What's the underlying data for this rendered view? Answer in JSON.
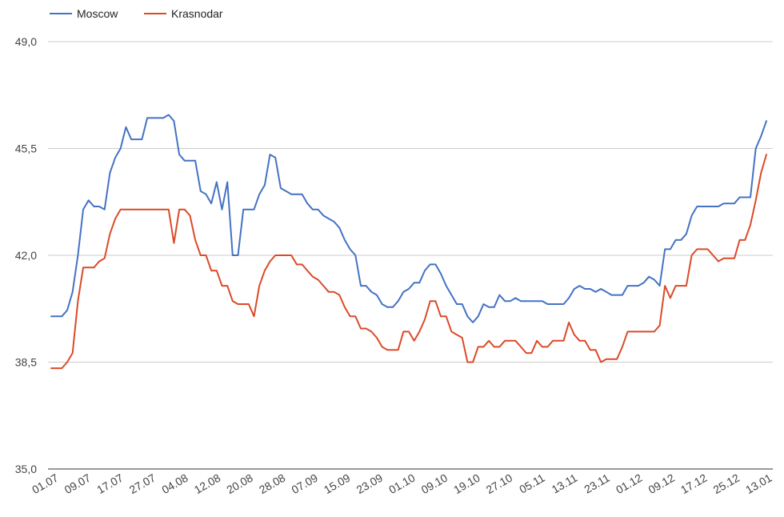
{
  "chart_data": {
    "type": "line",
    "title": "",
    "xlabel": "",
    "ylabel": "",
    "ylim": [
      35.0,
      49.0
    ],
    "yticks": [
      "35,0",
      "38,5",
      "42,0",
      "45,5",
      "49,0"
    ],
    "ytick_values": [
      35.0,
      38.5,
      42.0,
      45.5,
      49.0
    ],
    "xtick_labels": [
      "01.07",
      "09.07",
      "17.07",
      "27.07",
      "04.08",
      "12.08",
      "20.08",
      "28.08",
      "07.09",
      "15.09",
      "23.09",
      "01.10",
      "09.10",
      "19.10",
      "27.10",
      "05.11",
      "13.11",
      "23.11",
      "01.12",
      "09.12",
      "17.12",
      "25.12",
      "13.01"
    ],
    "grid": true,
    "legend": "top-left",
    "colors": {
      "Moscow": "#4472c4",
      "Krasnodar": "#db4a28"
    },
    "series": [
      {
        "name": "Moscow",
        "values": [
          40.0,
          40.0,
          40.0,
          40.2,
          40.8,
          42.0,
          43.5,
          43.8,
          43.6,
          43.6,
          43.5,
          44.7,
          45.2,
          45.5,
          46.2,
          45.8,
          45.8,
          45.8,
          46.5,
          46.5,
          46.5,
          46.5,
          46.6,
          46.4,
          45.3,
          45.1,
          45.1,
          45.1,
          44.1,
          44.0,
          43.7,
          44.4,
          43.5,
          44.4,
          42.0,
          42.0,
          43.5,
          43.5,
          43.5,
          44.0,
          44.3,
          45.3,
          45.2,
          44.2,
          44.1,
          44.0,
          44.0,
          44.0,
          43.7,
          43.5,
          43.5,
          43.3,
          43.2,
          43.1,
          42.9,
          42.5,
          42.2,
          42.0,
          41.0,
          41.0,
          40.8,
          40.7,
          40.4,
          40.3,
          40.3,
          40.5,
          40.8,
          40.9,
          41.1,
          41.1,
          41.5,
          41.7,
          41.7,
          41.4,
          41.0,
          40.7,
          40.4,
          40.4,
          40.0,
          39.8,
          40.0,
          40.4,
          40.3,
          40.3,
          40.7,
          40.5,
          40.5,
          40.6,
          40.5,
          40.5,
          40.5,
          40.5,
          40.5,
          40.4,
          40.4,
          40.4,
          40.4,
          40.6,
          40.9,
          41.0,
          40.9,
          40.9,
          40.8,
          40.9,
          40.8,
          40.7,
          40.7,
          40.7,
          41.0,
          41.0,
          41.0,
          41.1,
          41.3,
          41.2,
          41.0,
          42.2,
          42.2,
          42.5,
          42.5,
          42.7,
          43.3,
          43.6,
          43.6,
          43.6,
          43.6,
          43.6,
          43.7,
          43.7,
          43.7,
          43.9,
          43.9,
          43.9,
          45.5,
          45.9,
          46.4
        ]
      },
      {
        "name": "Krasnodar",
        "values": [
          38.3,
          38.3,
          38.3,
          38.5,
          38.8,
          40.5,
          41.6,
          41.6,
          41.6,
          41.8,
          41.9,
          42.7,
          43.2,
          43.5,
          43.5,
          43.5,
          43.5,
          43.5,
          43.5,
          43.5,
          43.5,
          43.5,
          43.5,
          42.4,
          43.5,
          43.5,
          43.3,
          42.5,
          42.0,
          42.0,
          41.5,
          41.5,
          41.0,
          41.0,
          40.5,
          40.4,
          40.4,
          40.4,
          40.0,
          41.0,
          41.5,
          41.8,
          42.0,
          42.0,
          42.0,
          42.0,
          41.7,
          41.7,
          41.5,
          41.3,
          41.2,
          41.0,
          40.8,
          40.8,
          40.7,
          40.3,
          40.0,
          40.0,
          39.6,
          39.6,
          39.5,
          39.3,
          39.0,
          38.9,
          38.9,
          38.9,
          39.5,
          39.5,
          39.2,
          39.5,
          39.9,
          40.5,
          40.5,
          40.0,
          40.0,
          39.5,
          39.4,
          39.3,
          38.5,
          38.5,
          39.0,
          39.0,
          39.2,
          39.0,
          39.0,
          39.2,
          39.2,
          39.2,
          39.0,
          38.8,
          38.8,
          39.2,
          39.0,
          39.0,
          39.2,
          39.2,
          39.2,
          39.8,
          39.4,
          39.2,
          39.2,
          38.9,
          38.9,
          38.5,
          38.6,
          38.6,
          38.6,
          39.0,
          39.5,
          39.5,
          39.5,
          39.5,
          39.5,
          39.5,
          39.7,
          41.0,
          40.6,
          41.0,
          41.0,
          41.0,
          42.0,
          42.2,
          42.2,
          42.2,
          42.0,
          41.8,
          41.9,
          41.9,
          41.9,
          42.5,
          42.5,
          43.0,
          43.8,
          44.7,
          45.3
        ]
      }
    ]
  }
}
